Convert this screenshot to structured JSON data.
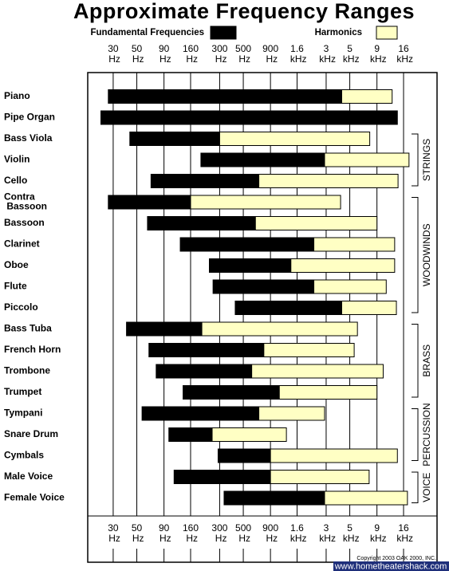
{
  "chart_data": {
    "type": "range-bar",
    "title": "Approximate Frequency Ranges",
    "log_scale": true,
    "grid": true,
    "xlim": [
      17.3,
      33000
    ],
    "xticks": [
      {
        "value": 30,
        "label": "30 Hz"
      },
      {
        "value": 50,
        "label": "50 Hz"
      },
      {
        "value": 90,
        "label": "90 Hz"
      },
      {
        "value": 160,
        "label": "160 Hz"
      },
      {
        "value": 300,
        "label": "300 Hz"
      },
      {
        "value": 500,
        "label": "500 Hz"
      },
      {
        "value": 900,
        "label": "900 Hz"
      },
      {
        "value": 1600,
        "label": "1.6 kHz"
      },
      {
        "value": 3000,
        "label": "3 kHz"
      },
      {
        "value": 5000,
        "label": "5 kHz"
      },
      {
        "value": 9000,
        "label": "9 kHz"
      },
      {
        "value": 16000,
        "label": "16 kHz"
      }
    ],
    "categories": [
      "Piano",
      "Pipe Organ",
      "Bass Viola",
      "Violin",
      "Cello",
      "Contra Bassoon",
      "Bassoon",
      "Clarinet",
      "Oboe",
      "Flute",
      "Piccolo",
      "Bass Tuba",
      "French Horn",
      "Trombone",
      "Trumpet",
      "Tympani",
      "Snare Drum",
      "Cymbals",
      "Male Voice",
      "Female Voice"
    ],
    "groups": [
      "STRINGS",
      "WOODWINDS",
      "BRASS",
      "PERCUSSION",
      "VOICE"
    ],
    "series": [
      {
        "name": "Fundamental Frequencies",
        "color": "#000000",
        "low": [
          27,
          23,
          43,
          200,
          68,
          27,
          63,
          128,
          240,
          260,
          420,
          40,
          65,
          76,
          136,
          56,
          100,
          290,
          112,
          330
        ],
        "high": [
          4200,
          14000,
          300,
          2900,
          700,
          160,
          650,
          2300,
          1400,
          2300,
          4200,
          204,
          780,
          600,
          1090,
          700,
          255,
          900,
          900,
          2900
        ]
      },
      {
        "name": "Harmonics",
        "color": "#ffffc4",
        "low": [
          4200,
          null,
          300,
          2900,
          700,
          160,
          650,
          2300,
          1400,
          2300,
          4200,
          204,
          780,
          600,
          1090,
          700,
          255,
          900,
          900,
          2900
        ],
        "high": [
          12500,
          null,
          7700,
          18000,
          14200,
          4100,
          9000,
          13200,
          13200,
          11000,
          13700,
          5900,
          5500,
          10300,
          9000,
          2900,
          1270,
          14000,
          7600,
          17400
        ]
      }
    ],
    "copyright": "Copyright 2003 OAK 2000, INC.",
    "source": "www.hometheatershack.com"
  }
}
